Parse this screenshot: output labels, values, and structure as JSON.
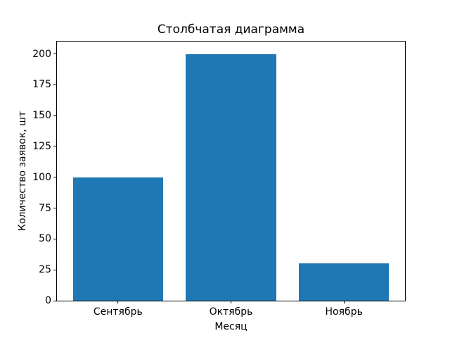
{
  "chart_data": {
    "type": "bar",
    "title": "Столбчатая диаграмма",
    "xlabel": "Месяц",
    "ylabel": "Количество заявок, шт",
    "categories": [
      "Сентябрь",
      "Октябрь",
      "Ноябрь"
    ],
    "values": [
      100,
      200,
      30
    ],
    "bar_color": "#1f77b4",
    "ylim": [
      0,
      210
    ],
    "yticks": [
      0,
      25,
      50,
      75,
      100,
      125,
      150,
      175,
      200
    ],
    "xlim": [
      -0.54,
      2.54
    ],
    "bar_width": 0.8,
    "grid": false,
    "legend_position": "none"
  }
}
